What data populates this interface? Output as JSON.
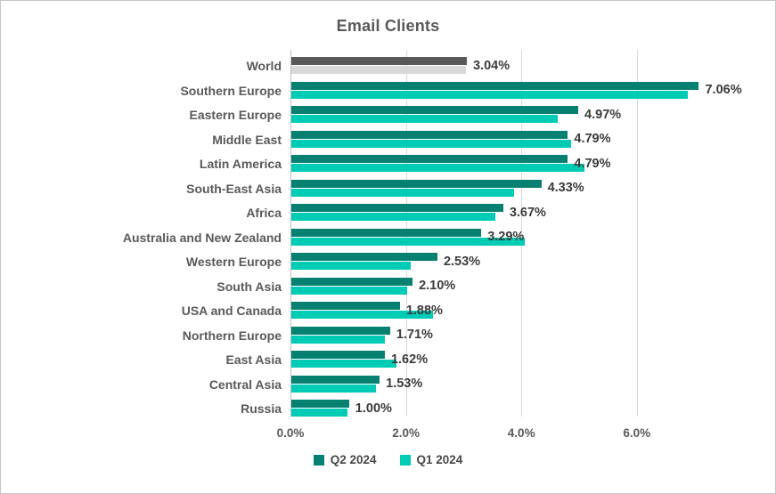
{
  "chart_data": {
    "type": "bar",
    "orientation": "horizontal",
    "title": "Email Clients",
    "categories": [
      "World",
      "Southern Europe",
      "Eastern Europe",
      "Middle East",
      "Latin America",
      "South-East Asia",
      "Africa",
      "Australia and New Zealand",
      "Western Europe",
      "South Asia",
      "USA and Canada",
      "Northern Europe",
      "East Asia",
      "Central Asia",
      "Russia"
    ],
    "series": [
      {
        "name": "Q2 2024",
        "color": "#068071",
        "values": [
          3.04,
          7.06,
          4.97,
          4.79,
          4.79,
          4.33,
          3.67,
          3.29,
          2.53,
          2.1,
          1.88,
          1.71,
          1.62,
          1.53,
          1.0
        ],
        "data_labels": [
          "3.04%",
          "7.06%",
          "4.97%",
          "4.79%",
          "4.79%",
          "4.33%",
          "3.67%",
          "3.29%",
          "2.53%",
          "2.10%",
          "1.88%",
          "1.71%",
          "1.62%",
          "1.53%",
          "1.00%"
        ]
      },
      {
        "name": "Q1 2024",
        "color": "#00cbb5",
        "values": [
          3.02,
          6.87,
          4.62,
          4.85,
          5.07,
          3.86,
          3.53,
          4.05,
          2.07,
          2.0,
          2.45,
          1.62,
          1.82,
          1.46,
          0.97
        ]
      }
    ],
    "category_color_overrides": {
      "World": {
        "Q2 2024": "#595959",
        "Q1 2024": "#d9d9d9"
      }
    },
    "xlim": [
      0,
      7.5
    ],
    "x_ticks": [
      {
        "value": 0,
        "label": "0.0%"
      },
      {
        "value": 2,
        "label": "2.0%"
      },
      {
        "value": 4,
        "label": "4.0%"
      },
      {
        "value": 6,
        "label": "6.0%"
      }
    ],
    "grid": true,
    "grid_color": "#d9d9d9",
    "axis_color": "#bfbfbf",
    "legend_position": "bottom"
  }
}
